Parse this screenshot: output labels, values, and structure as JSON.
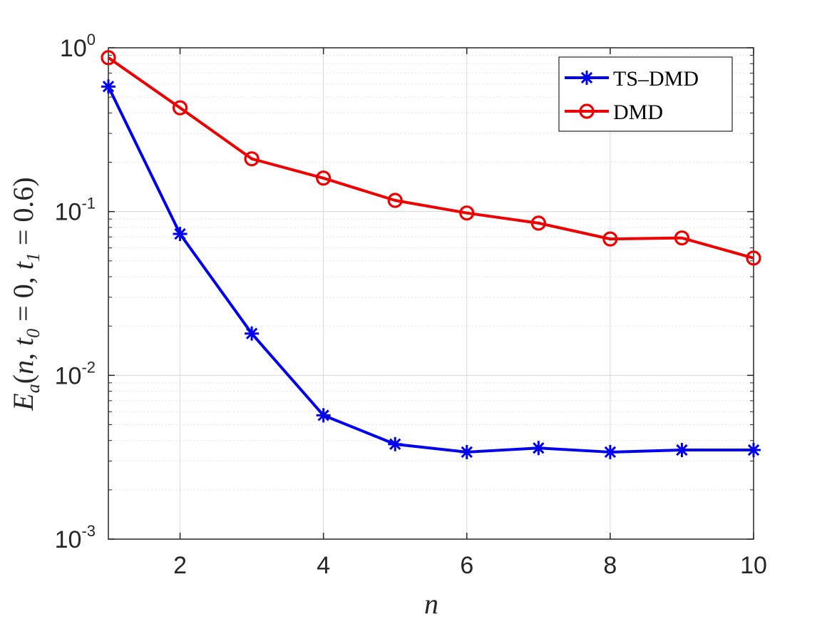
{
  "chart_data": {
    "type": "line",
    "title": "",
    "xlabel": "n",
    "ylabel": "E_a(n, t_0 = 0, t_1 = 0.6)",
    "xlim": [
      1,
      10
    ],
    "ylim": [
      0.001,
      1
    ],
    "yscale": "log",
    "grid": true,
    "legend_position": "top-right",
    "x_ticks": [
      2,
      4,
      6,
      8,
      10
    ],
    "y_ticks": [
      {
        "value": 1,
        "base": "10",
        "exp": "0"
      },
      {
        "value": 0.1,
        "base": "10",
        "exp": "-1"
      },
      {
        "value": 0.01,
        "base": "10",
        "exp": "-2"
      },
      {
        "value": 0.001,
        "base": "10",
        "exp": "-3"
      }
    ],
    "series": [
      {
        "name": "TS–DMD",
        "color": "#0000ee",
        "marker": "asterisk",
        "x": [
          1,
          2,
          3,
          4,
          5,
          6,
          7,
          8,
          9,
          10
        ],
        "y": [
          0.58,
          0.073,
          0.018,
          0.0057,
          0.0038,
          0.0034,
          0.0036,
          0.0034,
          0.0035,
          0.0035
        ]
      },
      {
        "name": "DMD",
        "color": "#ee0000",
        "marker": "circle",
        "x": [
          1,
          2,
          3,
          4,
          5,
          6,
          7,
          8,
          9,
          10
        ],
        "y": [
          0.87,
          0.43,
          0.21,
          0.16,
          0.117,
          0.098,
          0.085,
          0.068,
          0.069,
          0.052
        ]
      }
    ]
  }
}
